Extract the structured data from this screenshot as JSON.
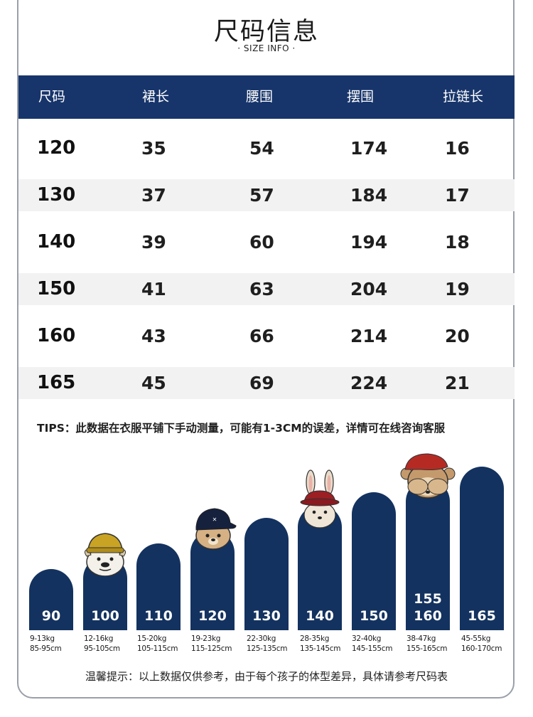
{
  "header": {
    "title": "尺码信息",
    "subtitle": "· SIZE INFO ·"
  },
  "table": {
    "columns": [
      "尺码",
      "裙长",
      "腰围",
      "摆围",
      "拉链长"
    ],
    "rows": [
      [
        "120",
        "35",
        "54",
        "174",
        "16"
      ],
      [
        "130",
        "37",
        "57",
        "184",
        "17"
      ],
      [
        "140",
        "39",
        "60",
        "194",
        "18"
      ],
      [
        "150",
        "41",
        "63",
        "204",
        "19"
      ],
      [
        "160",
        "43",
        "66",
        "214",
        "20"
      ],
      [
        "165",
        "45",
        "69",
        "224",
        "21"
      ]
    ]
  },
  "tips": "TIPS：此数据在衣服平铺下手动测量，可能有1-3CM的误差，详情可在线咨询客服",
  "size_chart": {
    "bars": [
      {
        "label": "90",
        "weight": "9-13kg",
        "height": "85-95cm"
      },
      {
        "label": "100",
        "weight": "12-16kg",
        "height": "95-105cm"
      },
      {
        "label": "110",
        "weight": "15-20kg",
        "height": "105-115cm"
      },
      {
        "label": "120",
        "weight": "19-23kg",
        "height": "115-125cm"
      },
      {
        "label": "130",
        "weight": "22-30kg",
        "height": "125-135cm"
      },
      {
        "label": "140",
        "weight": "28-35kg",
        "height": "135-145cm"
      },
      {
        "label": "150",
        "weight": "32-40kg",
        "height": "145-155cm"
      },
      {
        "label": "160",
        "label_top": "155",
        "weight": "38-47kg",
        "height": "155-165cm"
      },
      {
        "label": "165",
        "weight": "45-55kg",
        "height": "160-170cm"
      }
    ]
  },
  "note": "温馨提示：以上数据仅供参考，由于每个孩子的体型差异，具体请参考尺码表",
  "colors": {
    "navy": "#18356b",
    "bar": "#13325f",
    "row_alt": "#f2f2f2"
  }
}
